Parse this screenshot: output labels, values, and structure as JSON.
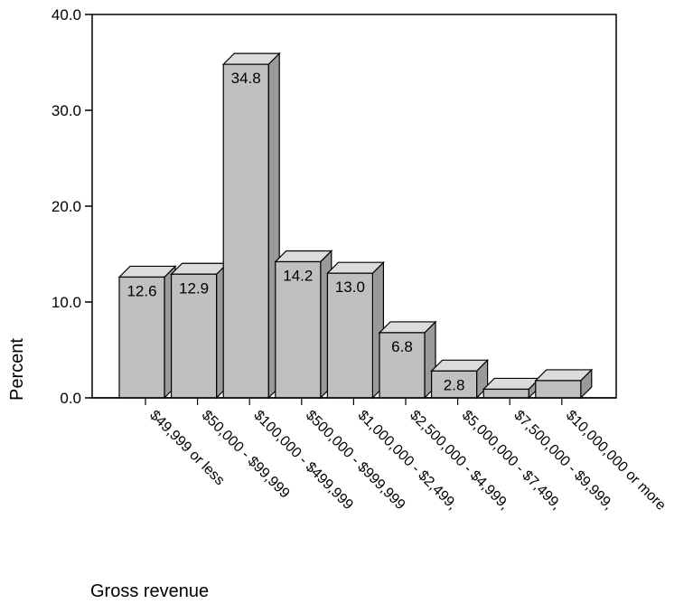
{
  "chart_data": {
    "type": "bar",
    "style": "3d",
    "categories": [
      "$49,999 or less",
      "$50,000 - $99,999",
      "$100,000 - $499,999",
      "$500,000 - $999,999",
      "$1,000,000 - $2,499,",
      "$2,500,000 - $4,999,",
      "$5,000,000 - $7,499,",
      "$7,500,000 - $9,999,",
      "$10,000,000 or more"
    ],
    "values": [
      12.6,
      12.9,
      34.8,
      14.2,
      13.0,
      6.8,
      2.8,
      0.9,
      1.8
    ],
    "value_labels": [
      "12.6",
      "12.9",
      "34.8",
      "14.2",
      "13.0",
      "6.8",
      "2.8",
      "",
      ""
    ],
    "ylim": [
      0,
      40
    ],
    "yticks": [
      "0.0",
      "10.0",
      "20.0",
      "30.0",
      "40.0"
    ],
    "xlabel": "Gross revenue",
    "ylabel": "Percent",
    "grid": false,
    "colors": {
      "bar_front": "#c0c0c0",
      "bar_top": "#dcdcdc",
      "bar_side": "#9a9a9a",
      "outline": "#000000"
    }
  }
}
